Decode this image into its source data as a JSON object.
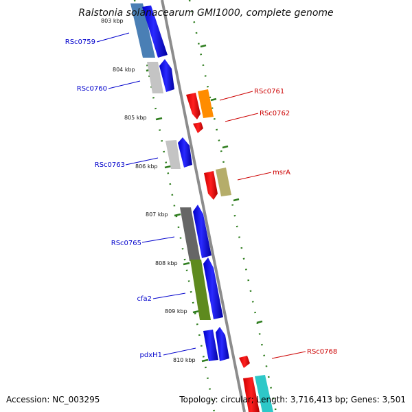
{
  "title": "Ralstonia solanacearum GMI1000, complete genome",
  "footer": {
    "accession": "Accession: NC_003295",
    "summary": "Topology: circular; Length: 3,716,413 bp; Genes: 3,501"
  },
  "colors": {
    "backbone": "#8c8c8c",
    "dot_track": "#2e7d1e",
    "forward_label": "#0000cc",
    "reverse_label": "#cc0000"
  },
  "ticks": [
    "803 kbp",
    "804 kbp",
    "805 kbp",
    "806 kbp",
    "807 kbp",
    "808 kbp",
    "809 kbp",
    "810 kbp"
  ],
  "forward_genes": [
    {
      "name": "RSc0759",
      "cog_color": "#4a7fb5"
    },
    {
      "name": "RSc0760",
      "cog_color": "#bdbdbd"
    },
    {
      "name": "RSc0763",
      "cog_color": "#bdbdbd"
    },
    {
      "name": "RSc0765",
      "cog_color": "#666666"
    },
    {
      "name": "cfa2",
      "cog_color": "#5e8a1e"
    },
    {
      "name": "pdxH1",
      "cog_color": "#1010e0"
    }
  ],
  "reverse_genes": [
    {
      "name": "RSc0761",
      "cog_color": "#ff8c00"
    },
    {
      "name": "RSc0762",
      "cog_color": ""
    },
    {
      "name": "msrA",
      "cog_color": "#b5ad6a"
    },
    {
      "name": "RSc0768",
      "cog_color": ""
    }
  ]
}
